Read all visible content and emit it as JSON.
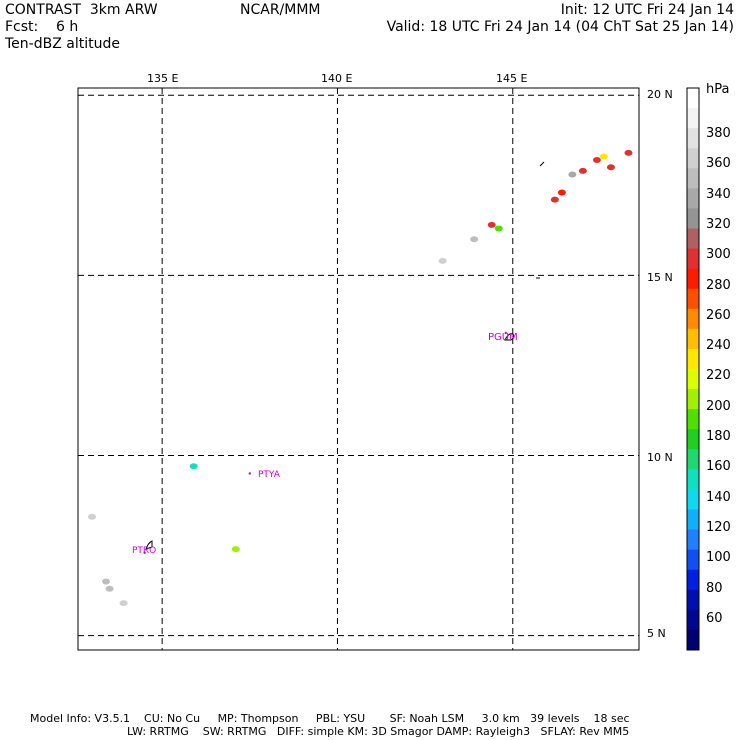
{
  "header": {
    "model": "CONTRAST  3km ARW",
    "org": "NCAR/MMM",
    "init": "Init: 12 UTC Fri 24 Jan 14",
    "fcst": "Fcst:    6 h",
    "valid": "Valid: 18 UTC Fri 24 Jan 14 (04 ChT Sat 25 Jan 14)",
    "field": "Ten-dBZ altitude"
  },
  "map": {
    "lon_labels": [
      "135 E",
      "140 E",
      "145 E"
    ],
    "lat_labels": [
      "20 N",
      "15 N",
      "10 N",
      "5 N"
    ],
    "lon_range": [
      132.6,
      148.6
    ],
    "lat_range": [
      4.6,
      20.2
    ],
    "lon_lines": [
      135,
      140,
      145
    ],
    "lat_lines": [
      20,
      15,
      10,
      5
    ],
    "stations": [
      {
        "id": "PGUM",
        "lon": 144.8,
        "lat": 13.4
      },
      {
        "id": "PTYA",
        "lon": 137.5,
        "lat": 9.5
      },
      {
        "id": "PTRO",
        "lon": 134.5,
        "lat": 7.3
      }
    ],
    "echoes": [
      {
        "lon": 147.6,
        "lat": 18.3,
        "level": 230
      },
      {
        "lon": 147.4,
        "lat": 18.2,
        "level": 300
      },
      {
        "lon": 147.8,
        "lat": 18.0,
        "level": 290
      },
      {
        "lon": 148.3,
        "lat": 18.4,
        "level": 300
      },
      {
        "lon": 147.0,
        "lat": 17.9,
        "level": 290
      },
      {
        "lon": 146.7,
        "lat": 17.8,
        "level": 340
      },
      {
        "lon": 146.4,
        "lat": 17.3,
        "level": 280
      },
      {
        "lon": 146.2,
        "lat": 17.1,
        "level": 300
      },
      {
        "lon": 144.6,
        "lat": 16.3,
        "level": 190
      },
      {
        "lon": 144.4,
        "lat": 16.4,
        "level": 300
      },
      {
        "lon": 143.9,
        "lat": 16.0,
        "level": 350
      },
      {
        "lon": 143.0,
        "lat": 15.4,
        "level": 360
      },
      {
        "lon": 135.9,
        "lat": 9.7,
        "level": 150
      },
      {
        "lon": 137.1,
        "lat": 7.4,
        "level": 200
      },
      {
        "lon": 133.4,
        "lat": 6.5,
        "level": 350
      },
      {
        "lon": 133.5,
        "lat": 6.3,
        "level": 350
      },
      {
        "lon": 133.0,
        "lat": 8.3,
        "level": 360
      },
      {
        "lon": 133.9,
        "lat": 5.9,
        "level": 360
      }
    ]
  },
  "colorbar": {
    "unit": "hPa",
    "labels": [
      "380",
      "360",
      "340",
      "320",
      "300",
      "280",
      "260",
      "240",
      "220",
      "200",
      "180",
      "160",
      "140",
      "120",
      "100",
      "80",
      "60"
    ],
    "colors": [
      "#ffffff",
      "#f4f4f4",
      "#e2e2e2",
      "#d0d0d0",
      "#bdbdbd",
      "#a8a8a8",
      "#949494",
      "#b06060",
      "#e03030",
      "#ff1a00",
      "#ff5000",
      "#ff8c00",
      "#ffbe00",
      "#ffe600",
      "#dcff00",
      "#a0f000",
      "#50e000",
      "#20d020",
      "#20d870",
      "#10e0c0",
      "#10d8f0",
      "#10b0f8",
      "#2080ff",
      "#1050f0",
      "#0020e0",
      "#0010b0",
      "#000890",
      "#000070"
    ]
  },
  "footer": {
    "line1": "Model Info: V3.5.1    CU: No Cu     MP: Thompson     PBL: YSU       SF: Noah LSM     3.0 km   39 levels    18 sec",
    "line2": "LW: RRTMG    SW: RRTMG   DIFF: simple KM: 3D Smagor DAMP: Rayleigh3   SFLAY: Rev MM5"
  }
}
